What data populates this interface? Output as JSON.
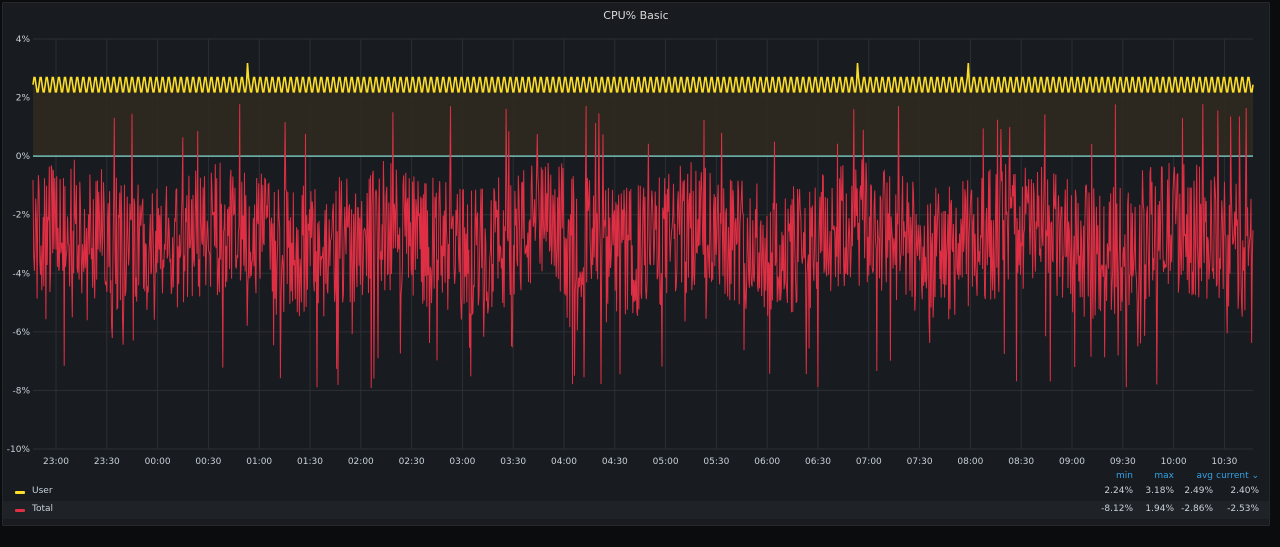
{
  "panel": {
    "title": "CPU% Basic"
  },
  "colors": {
    "user": "#fade2a",
    "user_fill": "#2f2a1f",
    "total": "#e02f44",
    "zero_line": "#73bfb8",
    "grid": "#2c3035",
    "legend_header": "#33a2e5"
  },
  "legend": {
    "headers": {
      "min": "min",
      "max": "max",
      "avg": "avg",
      "current": "current ⌄"
    },
    "series": [
      {
        "name": "User",
        "color": "#fade2a",
        "min": "2.24%",
        "max": "3.18%",
        "avg": "2.49%",
        "current": "2.40%"
      },
      {
        "name": "Total",
        "color": "#e02f44",
        "min": "-8.12%",
        "max": "1.94%",
        "avg": "-2.86%",
        "current": "-2.53%"
      }
    ]
  },
  "chart_data": {
    "type": "line",
    "title": "CPU% Basic",
    "ylim": [
      -10,
      4
    ],
    "y_ticks": [
      "4%",
      "2%",
      "0%",
      "-2%",
      "-4%",
      "-6%",
      "-8%",
      "-10%"
    ],
    "x_ticks": [
      "23:00",
      "23:30",
      "00:00",
      "00:30",
      "01:00",
      "01:30",
      "02:00",
      "02:30",
      "03:00",
      "03:30",
      "04:00",
      "04:30",
      "05:00",
      "05:30",
      "06:00",
      "06:30",
      "07:00",
      "07:30",
      "08:00",
      "08:30",
      "09:00",
      "09:30",
      "10:00",
      "10:30"
    ],
    "grid": true,
    "legend_placement": "bottom",
    "series": [
      {
        "name": "User",
        "min": 2.24,
        "max": 3.18,
        "avg": 2.49,
        "current": 2.4,
        "fill_to_zero": true
      },
      {
        "name": "Total",
        "min": -8.12,
        "max": 1.94,
        "avg": -2.86,
        "current": -2.53
      }
    ]
  }
}
